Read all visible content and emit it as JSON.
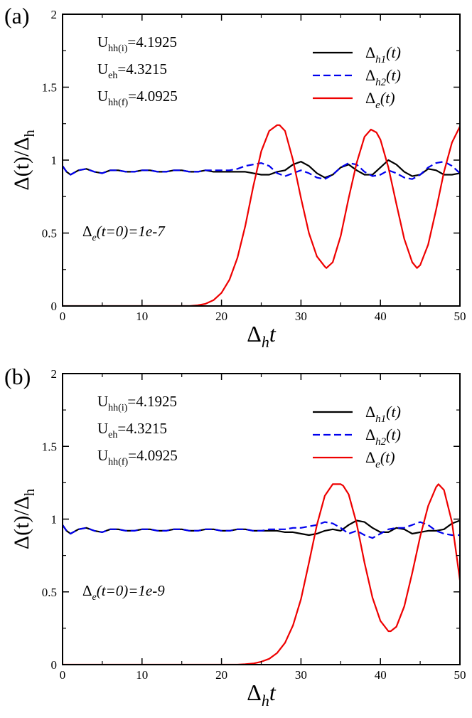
{
  "chart_data": [
    {
      "panel_label": "(a)",
      "type": "line",
      "xlabel": "Δ",
      "xlabel_sub": "h",
      "xlabel_var": "t",
      "ylabel": "Δ(t)/Δ",
      "ylabel_sub": "h",
      "xlim": [
        0,
        50
      ],
      "ylim": [
        0,
        2
      ],
      "x_ticks": [
        "0",
        "10",
        "20",
        "30",
        "40",
        "50"
      ],
      "y_ticks": [
        "0",
        "0.5",
        "1",
        "1.5",
        "2"
      ],
      "params": [
        {
          "base": "U",
          "sub": "hh(i)",
          "value": "=4.1925"
        },
        {
          "base": "U",
          "sub": "eh",
          "value": "=4.3215"
        },
        {
          "base": "U",
          "sub": "hh(f)",
          "value": "=4.0925"
        }
      ],
      "annotation": {
        "pre": "Δ",
        "sub": "e",
        "post": "(t=0)=1e-7"
      },
      "legend_position": "top-right",
      "series": [
        {
          "name": "Δh1(t)",
          "label_base": "Δ",
          "label_sub": "h1",
          "label_post": "(t)",
          "color": "#000000",
          "dash": "solid",
          "x": [
            0,
            0.5,
            1,
            2,
            3,
            4,
            5,
            6,
            7,
            8,
            9,
            10,
            11,
            12,
            13,
            14,
            15,
            16,
            17,
            18,
            19,
            20,
            21,
            22,
            23,
            24,
            25,
            26,
            27,
            28,
            29,
            30,
            31,
            32,
            33,
            34,
            35,
            36,
            37,
            38,
            39,
            40,
            41,
            42,
            43,
            44,
            45,
            46,
            47,
            48,
            49,
            50
          ],
          "y": [
            0.96,
            0.92,
            0.9,
            0.93,
            0.94,
            0.92,
            0.91,
            0.93,
            0.93,
            0.92,
            0.92,
            0.93,
            0.93,
            0.92,
            0.92,
            0.93,
            0.93,
            0.92,
            0.92,
            0.93,
            0.92,
            0.92,
            0.92,
            0.92,
            0.92,
            0.91,
            0.9,
            0.9,
            0.92,
            0.93,
            0.97,
            0.99,
            0.96,
            0.91,
            0.88,
            0.9,
            0.95,
            0.97,
            0.93,
            0.9,
            0.9,
            0.95,
            1.0,
            0.97,
            0.92,
            0.89,
            0.9,
            0.94,
            0.93,
            0.9,
            0.9,
            0.91
          ]
        },
        {
          "name": "Δh2(t)",
          "label_base": "Δ",
          "label_sub": "h2",
          "label_post": "(t)",
          "color": "#0000ee",
          "dash": "dashed",
          "x": [
            0,
            0.5,
            1,
            2,
            3,
            4,
            5,
            6,
            7,
            8,
            9,
            10,
            11,
            12,
            13,
            14,
            15,
            16,
            17,
            18,
            19,
            20,
            21,
            22,
            23,
            24,
            25,
            26,
            27,
            28,
            29,
            30,
            31,
            32,
            33,
            34,
            35,
            36,
            37,
            38,
            39,
            40,
            41,
            42,
            43,
            44,
            45,
            46,
            47,
            48,
            49,
            50
          ],
          "y": [
            0.96,
            0.92,
            0.9,
            0.93,
            0.94,
            0.92,
            0.91,
            0.93,
            0.93,
            0.92,
            0.92,
            0.93,
            0.93,
            0.92,
            0.92,
            0.93,
            0.93,
            0.92,
            0.92,
            0.93,
            0.93,
            0.93,
            0.93,
            0.94,
            0.96,
            0.97,
            0.98,
            0.96,
            0.91,
            0.89,
            0.91,
            0.93,
            0.91,
            0.88,
            0.87,
            0.9,
            0.95,
            0.98,
            0.97,
            0.92,
            0.89,
            0.9,
            0.93,
            0.91,
            0.88,
            0.87,
            0.9,
            0.95,
            0.98,
            0.99,
            0.96,
            0.91
          ]
        },
        {
          "name": "Δe(t)",
          "label_base": "Δ",
          "label_sub": "e",
          "label_post": "(t)",
          "color": "#ee0000",
          "dash": "solid",
          "x": [
            0,
            16,
            17,
            18,
            19,
            20,
            21,
            22,
            23,
            24,
            25,
            26,
            27,
            27.3,
            28,
            29,
            30,
            31,
            32,
            33,
            33.2,
            34,
            35,
            36,
            37,
            38,
            38.8,
            39.5,
            40,
            41,
            42,
            43,
            44,
            44.6,
            45,
            46,
            47,
            48,
            49,
            50
          ],
          "y": [
            0,
            0,
            0.005,
            0.015,
            0.04,
            0.09,
            0.18,
            0.33,
            0.55,
            0.82,
            1.06,
            1.2,
            1.24,
            1.24,
            1.2,
            1.0,
            0.74,
            0.5,
            0.34,
            0.27,
            0.26,
            0.3,
            0.48,
            0.74,
            0.98,
            1.16,
            1.21,
            1.19,
            1.14,
            0.95,
            0.7,
            0.46,
            0.3,
            0.26,
            0.28,
            0.42,
            0.66,
            0.92,
            1.12,
            1.23
          ]
        }
      ]
    },
    {
      "panel_label": "(b)",
      "type": "line",
      "xlabel": "Δ",
      "xlabel_sub": "h",
      "xlabel_var": "t",
      "ylabel": "Δ(t)/Δ",
      "ylabel_sub": "h",
      "xlim": [
        0,
        50
      ],
      "ylim": [
        0,
        2
      ],
      "x_ticks": [
        "0",
        "10",
        "20",
        "30",
        "40",
        "50"
      ],
      "y_ticks": [
        "0",
        "0.5",
        "1",
        "1.5",
        "2"
      ],
      "params": [
        {
          "base": "U",
          "sub": "hh(i)",
          "value": "=4.1925"
        },
        {
          "base": "U",
          "sub": "eh",
          "value": "=4.3215"
        },
        {
          "base": "U",
          "sub": "hh(f)",
          "value": "=4.0925"
        }
      ],
      "annotation": {
        "pre": "Δ",
        "sub": "e",
        "post": "(t=0)=1e-9"
      },
      "legend_position": "top-right",
      "series": [
        {
          "name": "Δh1(t)",
          "label_base": "Δ",
          "label_sub": "h1",
          "label_post": "(t)",
          "color": "#000000",
          "dash": "solid",
          "x": [
            0,
            0.5,
            1,
            2,
            3,
            4,
            5,
            6,
            7,
            8,
            9,
            10,
            11,
            12,
            13,
            14,
            15,
            16,
            17,
            18,
            19,
            20,
            21,
            22,
            23,
            24,
            25,
            26,
            27,
            28,
            29,
            30,
            31,
            32,
            33,
            34,
            35,
            36,
            37,
            38,
            39,
            40,
            41,
            42,
            43,
            44,
            45,
            46,
            47,
            48,
            49,
            50
          ],
          "y": [
            0.96,
            0.92,
            0.9,
            0.93,
            0.94,
            0.92,
            0.91,
            0.93,
            0.93,
            0.92,
            0.92,
            0.93,
            0.93,
            0.92,
            0.92,
            0.93,
            0.93,
            0.92,
            0.92,
            0.93,
            0.93,
            0.92,
            0.92,
            0.93,
            0.93,
            0.92,
            0.92,
            0.92,
            0.92,
            0.91,
            0.91,
            0.9,
            0.89,
            0.9,
            0.92,
            0.93,
            0.92,
            0.96,
            0.99,
            0.98,
            0.94,
            0.91,
            0.91,
            0.94,
            0.93,
            0.9,
            0.91,
            0.92,
            0.92,
            0.93,
            0.97,
            0.99
          ]
        },
        {
          "name": "Δh2(t)",
          "label_base": "Δ",
          "label_sub": "h2",
          "label_post": "(t)",
          "color": "#0000ee",
          "dash": "dashed",
          "x": [
            0,
            0.5,
            1,
            2,
            3,
            4,
            5,
            6,
            7,
            8,
            9,
            10,
            11,
            12,
            13,
            14,
            15,
            16,
            17,
            18,
            19,
            20,
            21,
            22,
            23,
            24,
            25,
            26,
            27,
            28,
            29,
            30,
            31,
            32,
            33,
            34,
            35,
            36,
            37,
            38,
            39,
            40,
            41,
            42,
            43,
            44,
            45,
            46,
            47,
            48,
            49,
            50
          ],
          "y": [
            0.96,
            0.92,
            0.9,
            0.93,
            0.94,
            0.92,
            0.91,
            0.93,
            0.93,
            0.92,
            0.92,
            0.93,
            0.93,
            0.92,
            0.92,
            0.93,
            0.93,
            0.92,
            0.92,
            0.93,
            0.93,
            0.92,
            0.92,
            0.93,
            0.93,
            0.92,
            0.92,
            0.93,
            0.93,
            0.93,
            0.94,
            0.94,
            0.95,
            0.96,
            0.98,
            0.97,
            0.94,
            0.9,
            0.92,
            0.89,
            0.87,
            0.9,
            0.93,
            0.94,
            0.94,
            0.96,
            0.98,
            0.96,
            0.92,
            0.9,
            0.89,
            0.89
          ]
        },
        {
          "name": "Δe(t)",
          "label_base": "Δ",
          "label_sub": "e",
          "label_post": "(t)",
          "color": "#ee0000",
          "dash": "solid",
          "x": [
            0,
            22,
            23,
            24,
            25,
            26,
            27,
            28,
            29,
            30,
            31,
            32,
            33,
            34,
            35,
            35.3,
            36,
            37,
            38,
            39,
            40,
            41,
            41.3,
            42,
            43,
            44,
            45,
            46,
            47,
            47.3,
            48,
            49,
            50
          ],
          "y": [
            0,
            0,
            0.003,
            0.008,
            0.02,
            0.04,
            0.08,
            0.15,
            0.27,
            0.45,
            0.7,
            0.96,
            1.16,
            1.24,
            1.24,
            1.23,
            1.17,
            0.97,
            0.7,
            0.46,
            0.3,
            0.23,
            0.23,
            0.26,
            0.4,
            0.63,
            0.88,
            1.09,
            1.22,
            1.24,
            1.2,
            0.98,
            0.58
          ]
        }
      ]
    }
  ]
}
